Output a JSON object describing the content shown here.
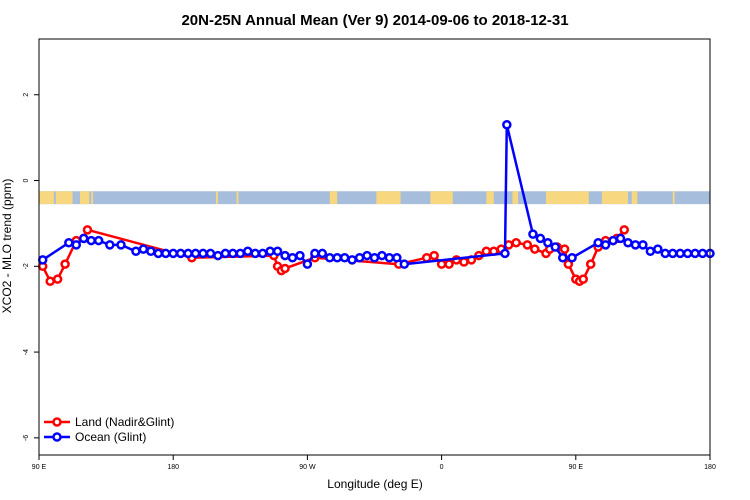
{
  "chart_data": {
    "type": "line",
    "title": "20N-25N Annual Mean (Ver 9)   2014-09-06 to 2018-12-31",
    "xlabel": "Longitude (deg E)",
    "ylabel": "XCO2 - MLO trend (ppm)",
    "xlim": [
      90,
      450
    ],
    "ylim": [
      -6.4,
      3.3
    ],
    "x_ticks": [
      {
        "value": 90,
        "label": "90 E"
      },
      {
        "value": 162,
        "label": "180"
      },
      {
        "value": 234,
        "label": "90 W"
      },
      {
        "value": 306,
        "label": "0"
      },
      {
        "value": 378,
        "label": "90 E"
      },
      {
        "value": 450,
        "label": "180"
      }
    ],
    "y_ticks": [
      {
        "value": 2,
        "label": "2"
      },
      {
        "value": 0,
        "label": "0"
      },
      {
        "value": -2,
        "label": "-2"
      },
      {
        "value": -4,
        "label": "-4"
      },
      {
        "value": -6,
        "label": "-6"
      }
    ],
    "map_band": {
      "ymin": -0.55,
      "ymax": -0.25,
      "ocean_color": "#a6bddb",
      "land_color": "#f7d77f"
    },
    "series": [
      {
        "name": "Land (Nadir&Glint)",
        "color": "#ff0000",
        "x": [
          92,
          96,
          100,
          104,
          110,
          114,
          116,
          172,
          216,
          218,
          220,
          222,
          238,
          283,
          298,
          302,
          306,
          310,
          314,
          318,
          322,
          326,
          330,
          334,
          338,
          342,
          346,
          352,
          356,
          362,
          364,
          368,
          372,
          374,
          378,
          380,
          382,
          386,
          390,
          394,
          398,
          400,
          404
        ],
        "y": [
          -2.0,
          -2.35,
          -2.3,
          -1.95,
          -1.4,
          -1.35,
          -1.15,
          -1.8,
          -1.75,
          -2.0,
          -2.1,
          -2.05,
          -1.8,
          -1.95,
          -1.8,
          -1.75,
          -1.95,
          -1.95,
          -1.85,
          -1.9,
          -1.85,
          -1.75,
          -1.65,
          -1.65,
          -1.6,
          -1.5,
          -1.45,
          -1.5,
          -1.6,
          -1.7,
          -1.6,
          -1.55,
          -1.6,
          -1.95,
          -2.3,
          -2.35,
          -2.3,
          -1.95,
          -1.55,
          -1.4,
          -1.4,
          -1.35,
          -1.15
        ]
      },
      {
        "name": "Ocean (Glint)",
        "color": "#0000ff",
        "x": [
          92,
          106,
          110,
          114,
          118,
          122,
          128,
          134,
          142,
          146,
          150,
          154,
          158,
          162,
          166,
          170,
          174,
          178,
          182,
          186,
          190,
          194,
          198,
          202,
          206,
          210,
          214,
          218,
          222,
          226,
          230,
          234,
          238,
          242,
          246,
          250,
          254,
          258,
          262,
          266,
          270,
          274,
          278,
          282,
          286,
          340,
          341,
          355,
          359,
          363,
          367,
          371,
          376,
          390,
          394,
          398,
          402,
          406,
          410,
          414,
          418,
          422,
          426,
          430,
          434,
          438,
          442,
          446,
          450
        ],
        "y": [
          -1.85,
          -1.45,
          -1.5,
          -1.35,
          -1.4,
          -1.4,
          -1.5,
          -1.5,
          -1.65,
          -1.6,
          -1.65,
          -1.7,
          -1.7,
          -1.7,
          -1.7,
          -1.7,
          -1.7,
          -1.7,
          -1.7,
          -1.75,
          -1.7,
          -1.7,
          -1.7,
          -1.65,
          -1.7,
          -1.7,
          -1.65,
          -1.65,
          -1.75,
          -1.8,
          -1.75,
          -1.95,
          -1.7,
          -1.7,
          -1.8,
          -1.8,
          -1.8,
          -1.85,
          -1.8,
          -1.75,
          -1.8,
          -1.75,
          -1.8,
          -1.8,
          -1.95,
          -1.7,
          1.3,
          -1.25,
          -1.35,
          -1.45,
          -1.55,
          -1.8,
          -1.8,
          -1.45,
          -1.5,
          -1.4,
          -1.35,
          -1.45,
          -1.5,
          -1.5,
          -1.65,
          -1.6,
          -1.7,
          -1.7,
          -1.7,
          -1.7,
          -1.7,
          -1.7,
          -1.7
        ]
      }
    ],
    "legend_position": "bottom-left"
  }
}
